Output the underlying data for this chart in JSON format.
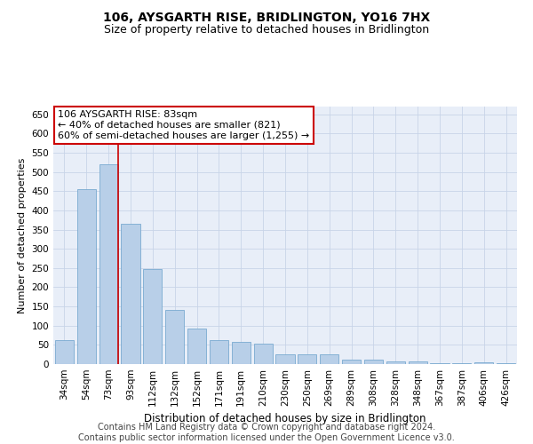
{
  "title": "106, AYSGARTH RISE, BRIDLINGTON, YO16 7HX",
  "subtitle": "Size of property relative to detached houses in Bridlington",
  "xlabel": "Distribution of detached houses by size in Bridlington",
  "ylabel": "Number of detached properties",
  "categories": [
    "34sqm",
    "54sqm",
    "73sqm",
    "93sqm",
    "112sqm",
    "132sqm",
    "152sqm",
    "171sqm",
    "191sqm",
    "210sqm",
    "230sqm",
    "250sqm",
    "269sqm",
    "289sqm",
    "308sqm",
    "328sqm",
    "348sqm",
    "367sqm",
    "387sqm",
    "406sqm",
    "426sqm"
  ],
  "values": [
    62,
    455,
    520,
    365,
    248,
    140,
    92,
    63,
    57,
    53,
    26,
    26,
    26,
    11,
    12,
    6,
    8,
    3,
    3,
    4,
    3
  ],
  "bar_color": "#b8cfe8",
  "bar_edge_color": "#7aaad0",
  "grid_color": "#c8d4e8",
  "background_color": "#e8eef8",
  "vline_color": "#cc0000",
  "vline_x_index": 2.425,
  "annotation_line1": "106 AYSGARTH RISE: 83sqm",
  "annotation_line2": "← 40% of detached houses are smaller (821)",
  "annotation_line3": "60% of semi-detached houses are larger (1,255) →",
  "annotation_box_color": "#cc0000",
  "annotation_box_bg": "#ffffff",
  "ylim": [
    0,
    670
  ],
  "yticks": [
    0,
    50,
    100,
    150,
    200,
    250,
    300,
    350,
    400,
    450,
    500,
    550,
    600,
    650
  ],
  "footer_line1": "Contains HM Land Registry data © Crown copyright and database right 2024.",
  "footer_line2": "Contains public sector information licensed under the Open Government Licence v3.0.",
  "title_fontsize": 10,
  "subtitle_fontsize": 9,
  "xlabel_fontsize": 8.5,
  "ylabel_fontsize": 8,
  "tick_fontsize": 7.5,
  "annotation_fontsize": 8,
  "footer_fontsize": 7
}
